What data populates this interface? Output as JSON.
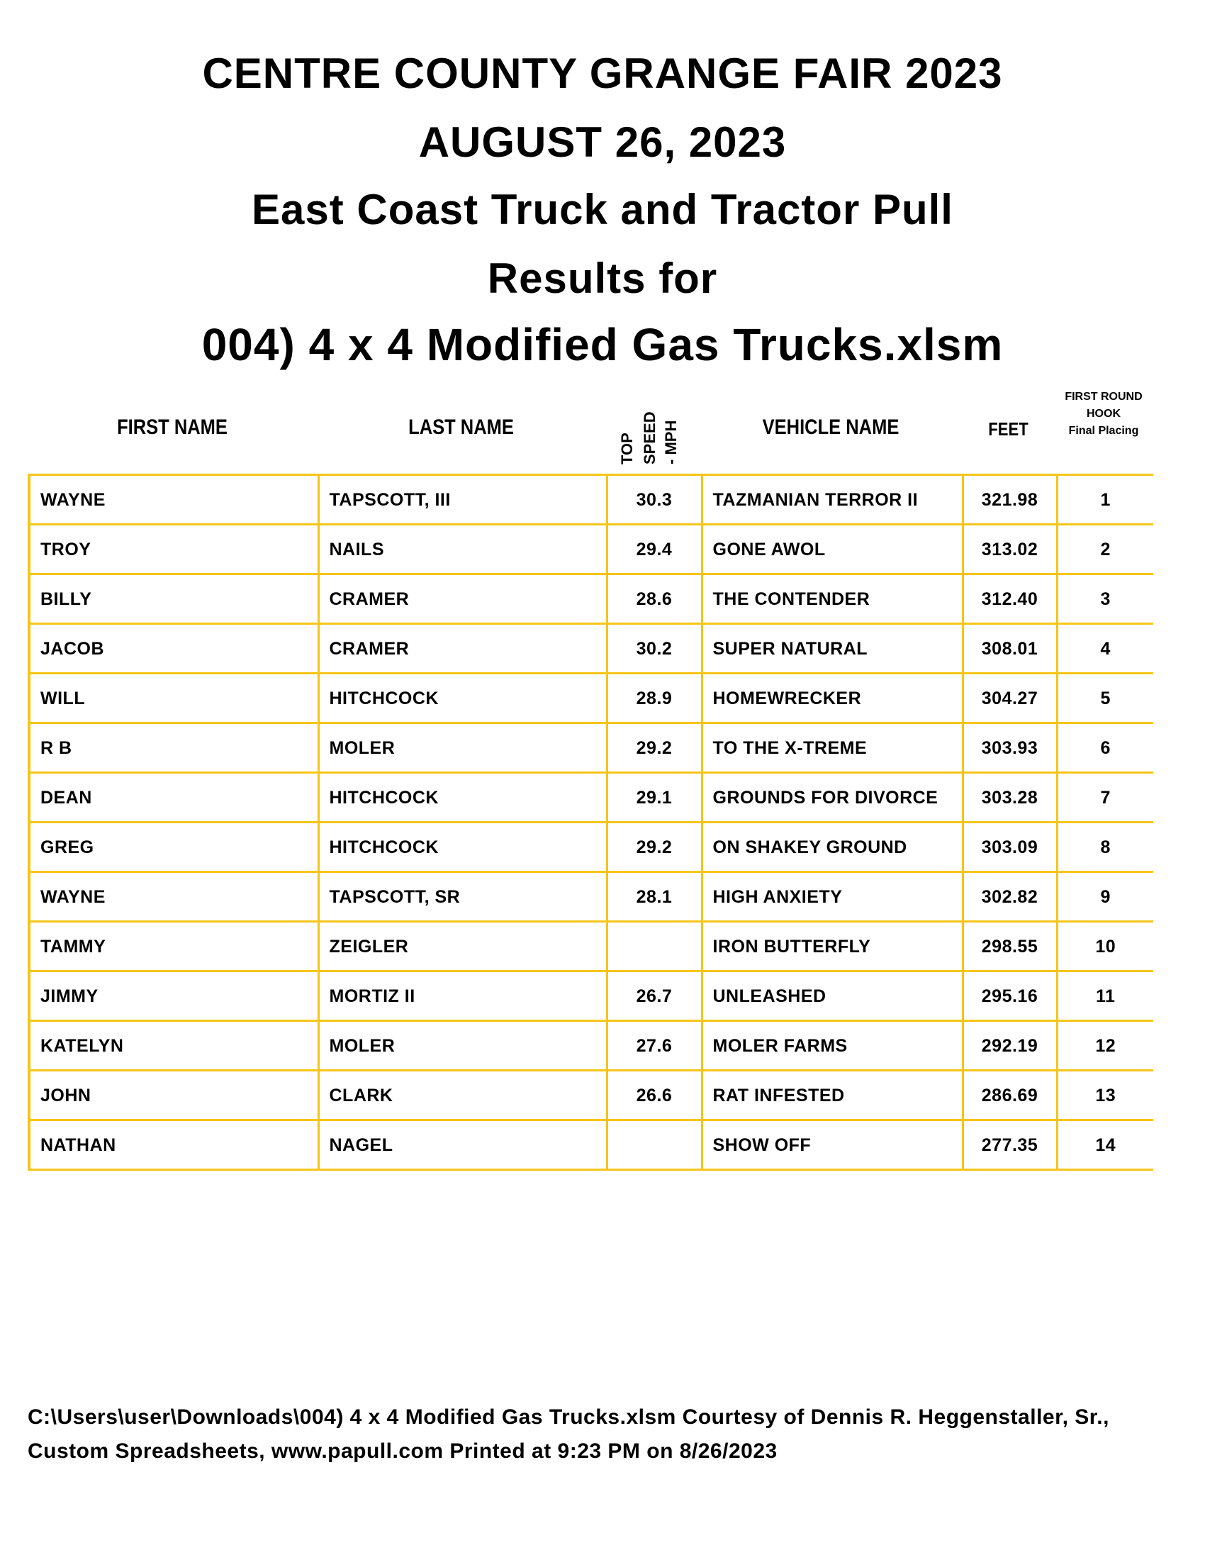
{
  "title_lines": [
    "CENTRE COUNTY GRANGE FAIR 2023",
    "AUGUST 26, 2023",
    "East Coast Truck and Tractor Pull",
    "Results for",
    "004) 4 x 4 Modified Gas Trucks.xlsm"
  ],
  "columns": {
    "first_name": "FIRST NAME",
    "last_name": "LAST NAME",
    "top_speed": [
      "TOP",
      "SPEED",
      "- MPH"
    ],
    "vehicle_name": "VEHICLE NAME",
    "feet": "FEET",
    "placing": [
      "FIRST ROUND",
      "HOOK",
      "Final Placing"
    ]
  },
  "rows": [
    {
      "first": "WAYNE",
      "last": "TAPSCOTT, III",
      "speed": "30.3",
      "vehicle": "TAZMANIAN TERROR II",
      "feet": "321.98",
      "place": "1"
    },
    {
      "first": "TROY",
      "last": "NAILS",
      "speed": "29.4",
      "vehicle": "GONE AWOL",
      "feet": "313.02",
      "place": "2"
    },
    {
      "first": "BILLY",
      "last": "CRAMER",
      "speed": "28.6",
      "vehicle": "THE CONTENDER",
      "feet": "312.40",
      "place": "3"
    },
    {
      "first": "JACOB",
      "last": "CRAMER",
      "speed": "30.2",
      "vehicle": "SUPER NATURAL",
      "feet": "308.01",
      "place": "4"
    },
    {
      "first": "WILL",
      "last": "HITCHCOCK",
      "speed": "28.9",
      "vehicle": "HOMEWRECKER",
      "feet": "304.27",
      "place": "5"
    },
    {
      "first": "R B",
      "last": "MOLER",
      "speed": "29.2",
      "vehicle": "TO THE X-TREME",
      "feet": "303.93",
      "place": "6"
    },
    {
      "first": "DEAN",
      "last": "HITCHCOCK",
      "speed": "29.1",
      "vehicle": "GROUNDS FOR DIVORCE",
      "feet": "303.28",
      "place": "7"
    },
    {
      "first": "GREG",
      "last": "HITCHCOCK",
      "speed": "29.2",
      "vehicle": "ON SHAKEY GROUND",
      "feet": "303.09",
      "place": "8"
    },
    {
      "first": "WAYNE",
      "last": "TAPSCOTT, SR",
      "speed": "28.1",
      "vehicle": "HIGH ANXIETY",
      "feet": "302.82",
      "place": "9"
    },
    {
      "first": "TAMMY",
      "last": "ZEIGLER",
      "speed": "",
      "vehicle": "IRON BUTTERFLY",
      "feet": "298.55",
      "place": "10"
    },
    {
      "first": "JIMMY",
      "last": "MORTIZ II",
      "speed": "26.7",
      "vehicle": "UNLEASHED",
      "feet": "295.16",
      "place": "11"
    },
    {
      "first": "KATELYN",
      "last": "MOLER",
      "speed": "27.6",
      "vehicle": "MOLER FARMS",
      "feet": "292.19",
      "place": "12"
    },
    {
      "first": "JOHN",
      "last": "CLARK",
      "speed": "26.6",
      "vehicle": "RAT INFESTED",
      "feet": "286.69",
      "place": "13"
    },
    {
      "first": "NATHAN",
      "last": "NAGEL",
      "speed": "",
      "vehicle": "SHOW OFF",
      "feet": "277.35",
      "place": "14"
    }
  ],
  "footer": "C:\\Users\\user\\Downloads\\004) 4 x 4 Modified Gas Trucks.xlsm  Courtesy of Dennis R. Heggenstaller, Sr., Custom Spreadsheets, www.papull.com          Printed at 9:23 PM on 8/26/2023",
  "colors": {
    "grid": "#f5c518",
    "text": "#000000"
  }
}
